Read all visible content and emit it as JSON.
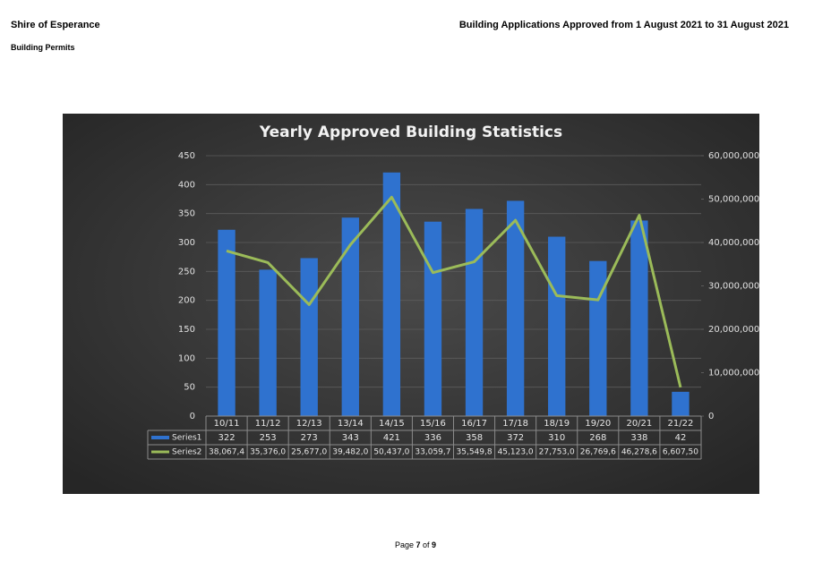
{
  "header": {
    "organisation": "Shire of Esperance",
    "report_title": "Building Applications Approved from 1 August 2021 to 31 August 2021",
    "section": "Building Permits"
  },
  "chart_data": {
    "type": "bar",
    "title": "Yearly Approved Building Statistics",
    "categories": [
      "10/11",
      "11/12",
      "12/13",
      "13/14",
      "14/15",
      "15/16",
      "16/17",
      "17/18",
      "18/19",
      "19/20",
      "20/21",
      "21/22"
    ],
    "series": [
      {
        "name": "Series1",
        "type": "bar",
        "color": "#2f72cf",
        "values": [
          322,
          253,
          273,
          343,
          421,
          336,
          358,
          372,
          310,
          268,
          338,
          42
        ]
      },
      {
        "name": "Series2",
        "type": "line",
        "axis": "y2",
        "color": "#9bbb59",
        "values": [
          38067400,
          35376000,
          25677000,
          39482000,
          50437000,
          33059700,
          35549800,
          45123000,
          27753000,
          26769600,
          46278600,
          6607500
        ],
        "value_labels": [
          "38,067,4",
          "35,376,0",
          "25,677,0",
          "39,482,0",
          "50,437,0",
          "33,059,7",
          "35,549,8",
          "45,123,0",
          "27,753,0",
          "26,769,6",
          "46,278,6",
          "6,607,50"
        ]
      }
    ],
    "ylim": [
      0,
      450
    ],
    "yticks": [
      0,
      50,
      100,
      150,
      200,
      250,
      300,
      350,
      400,
      450
    ],
    "y2lim": [
      0,
      60000000
    ],
    "y2ticks": [
      0,
      {
        "value": 10000000,
        "label": "10,000,000"
      },
      {
        "value": 20000000,
        "label": "20,000,000"
      },
      {
        "value": 30000000,
        "label": "30,000,000"
      },
      {
        "value": 40000000,
        "label": "40,000,000"
      },
      {
        "value": 50000000,
        "label": "50,000,000"
      },
      {
        "value": 60000000,
        "label": "60,000,000"
      }
    ],
    "grid": true,
    "data_table": true
  },
  "footer": {
    "word": "Page",
    "current": "7",
    "of": "of",
    "total": "9"
  }
}
